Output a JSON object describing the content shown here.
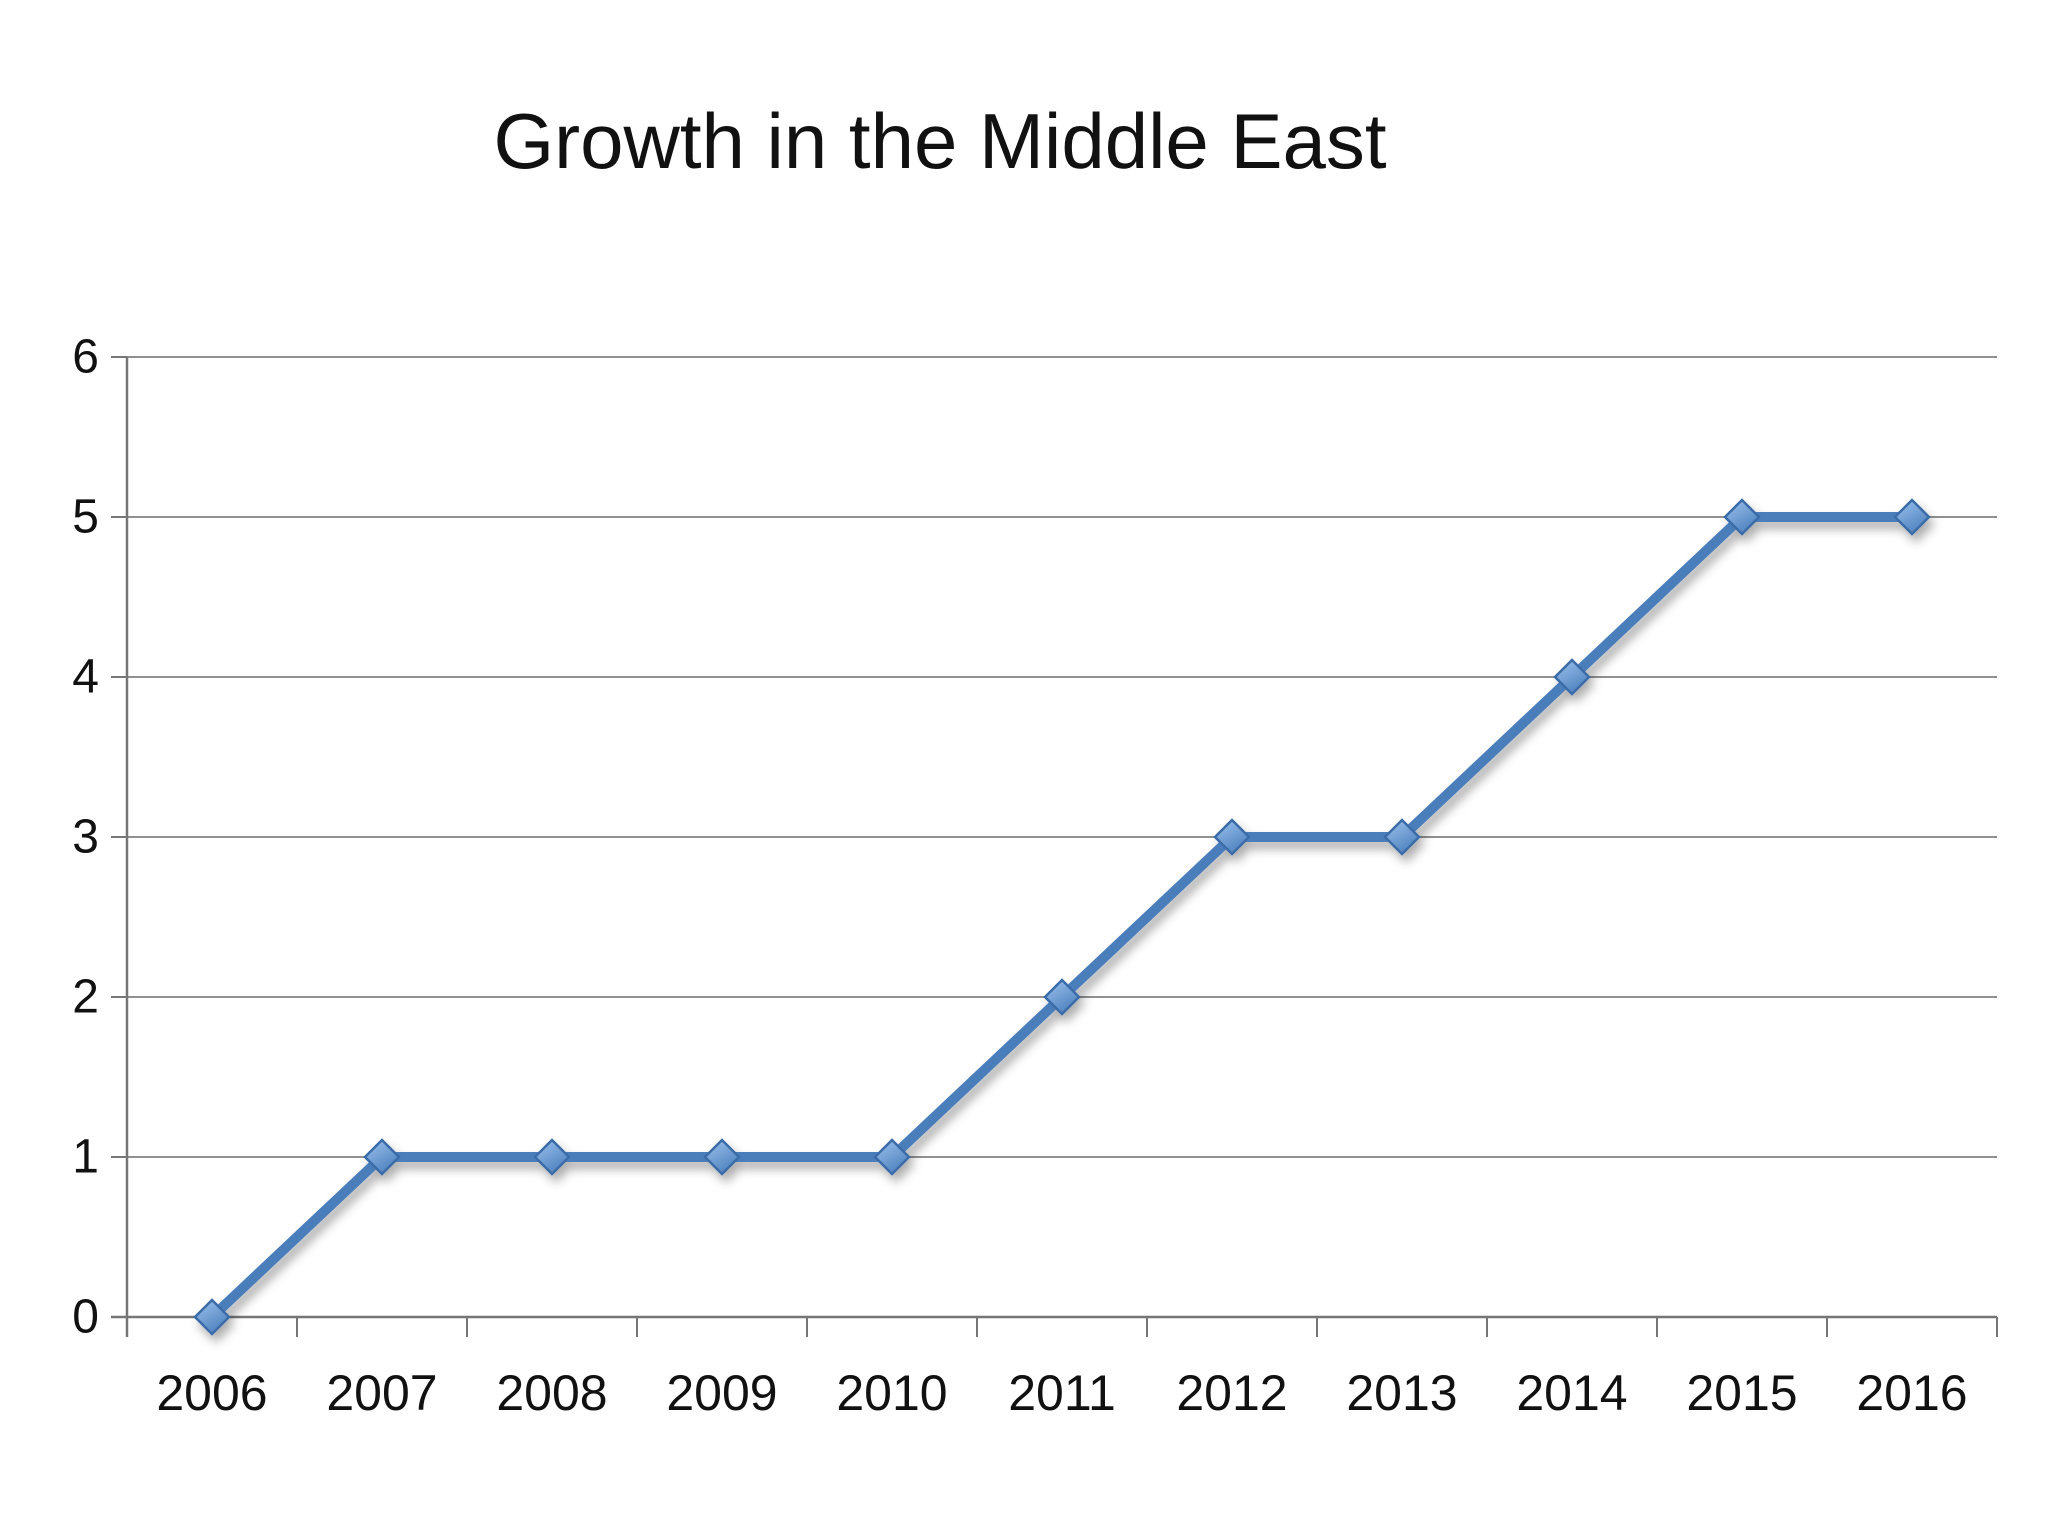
{
  "chart_data": {
    "type": "line",
    "title": "Growth in the Middle East",
    "categories": [
      "2006",
      "2007",
      "2008",
      "2009",
      "2010",
      "2011",
      "2012",
      "2013",
      "2014",
      "2015",
      "2016"
    ],
    "values": [
      0,
      1,
      1,
      1,
      1,
      2,
      3,
      3,
      4,
      5,
      5
    ],
    "xlabel": "",
    "ylabel": "",
    "ylim": [
      0,
      6
    ],
    "yticks": [
      0,
      1,
      2,
      3,
      4,
      5,
      6
    ],
    "grid": true,
    "legend": false,
    "marker": "diamond",
    "colors": {
      "line": "#4A7EBB",
      "marker_fill_light": "#9CC2EE",
      "marker_fill_dark": "#4F82BE",
      "marker_stroke": "#3B6CA8",
      "gridline": "#909090",
      "axis": "#767676",
      "text": "#111111",
      "background": "#FFFFFF"
    }
  }
}
